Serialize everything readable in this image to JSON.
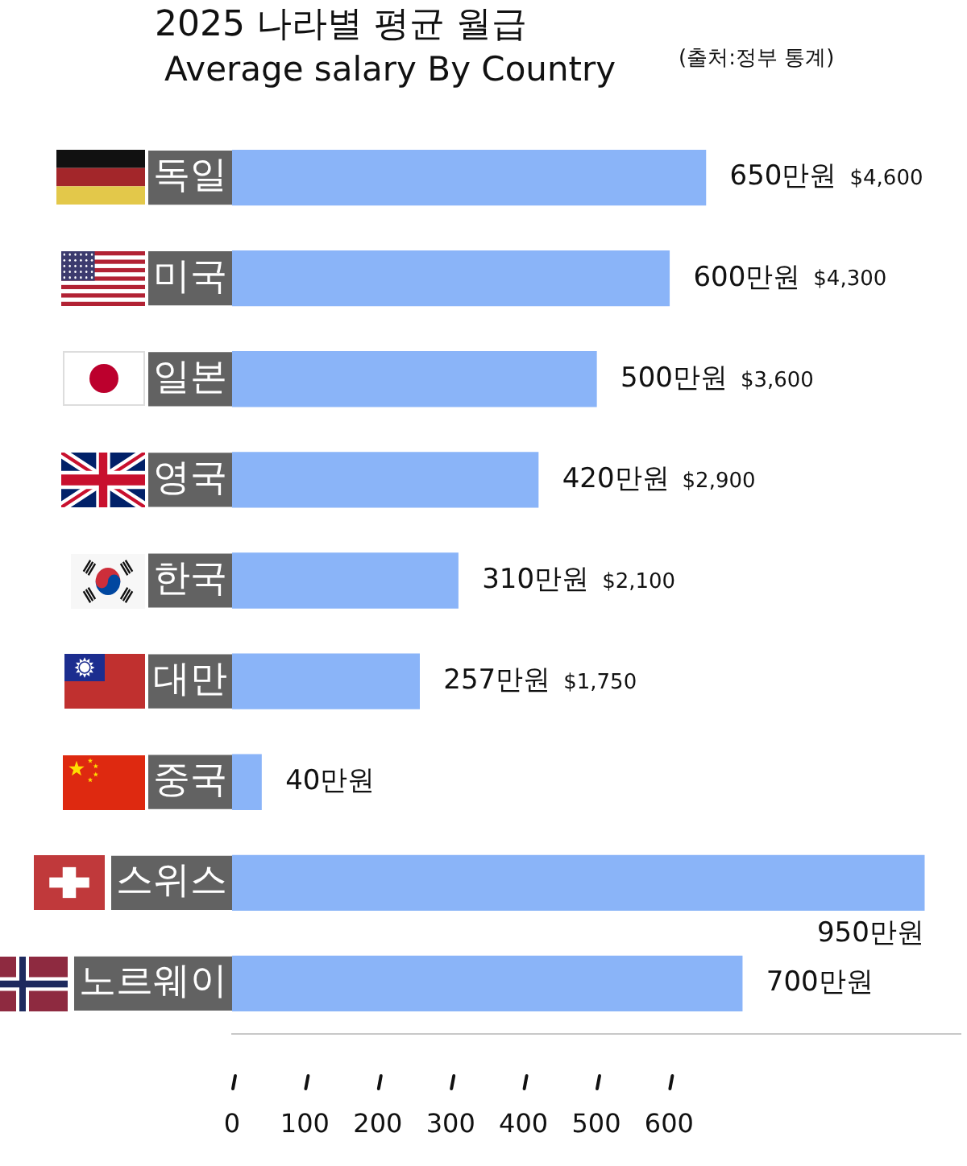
{
  "chart_data": {
    "type": "bar",
    "title": "2025 나라별 평균 월급",
    "subtitle": "Average salary By Country",
    "annotations": [
      "(출처:정부 통계)"
    ],
    "orientation": "horizontal",
    "categories": [
      "독일",
      "미국",
      "일본",
      "영국",
      "한국",
      "대만",
      "중국",
      "스위스",
      "노르웨이"
    ],
    "values": [
      650,
      600,
      500,
      420,
      310,
      257,
      40,
      950,
      700
    ],
    "value_labels": [
      "650만원 $4,600",
      "600만원 $4,300",
      "500만원 $3,600",
      "420만원 $2,900",
      "310만원 $2,100",
      "257만원 $1,750",
      "40만원",
      "950만원",
      "700만원"
    ],
    "color": "#8ab4f8",
    "xlim": [
      0,
      1000
    ],
    "xticks": [
      0,
      100,
      200,
      300,
      400,
      500,
      600
    ]
  }
}
